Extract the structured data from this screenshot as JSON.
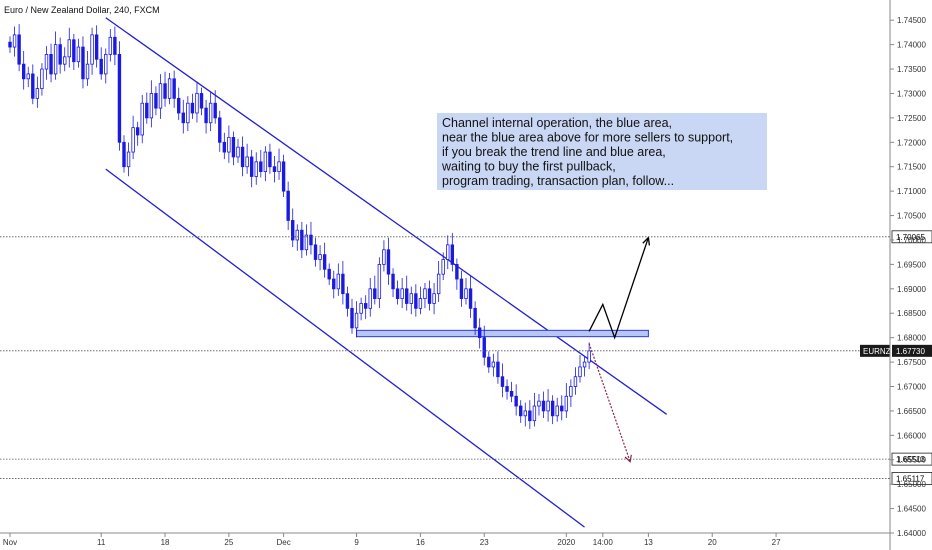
{
  "chart_data": {
    "type": "candlestick",
    "title": "Euro / New Zealand Dollar, 240, FXCM",
    "y_axis": {
      "position": "right",
      "ylim": [
        1.64,
        1.7475
      ],
      "ticks": [
        "1.74500",
        "1.74000",
        "1.73500",
        "1.73000",
        "1.72500",
        "1.72000",
        "1.71500",
        "1.71000",
        "1.70500",
        "1.70000",
        "1.69500",
        "1.69000",
        "1.68500",
        "1.68000",
        "1.67500",
        "1.67000",
        "1.66500",
        "1.66000",
        "1.65500",
        "1.65000",
        "1.64500",
        "1.64000"
      ],
      "tick_values": [
        1.745,
        1.74,
        1.735,
        1.73,
        1.725,
        1.72,
        1.715,
        1.71,
        1.705,
        1.7,
        1.695,
        1.69,
        1.685,
        1.68,
        1.675,
        1.67,
        1.665,
        1.66,
        1.655,
        1.65,
        1.645,
        1.64
      ]
    },
    "x_axis": {
      "ticks": [
        {
          "label": "Nov",
          "day": 0
        },
        {
          "label": "11",
          "day": 10
        },
        {
          "label": "18",
          "day": 17
        },
        {
          "label": "25",
          "day": 24
        },
        {
          "label": "Dec",
          "day": 30
        },
        {
          "label": "9",
          "day": 38
        },
        {
          "label": "16",
          "day": 45
        },
        {
          "label": "23",
          "day": 52
        },
        {
          "label": "2020",
          "day": 61
        },
        {
          "label": "14:00",
          "day": 65
        },
        {
          "label": "13",
          "day": 70
        },
        {
          "label": "20",
          "day": 77
        },
        {
          "label": "27",
          "day": 84
        }
      ]
    },
    "series": [
      {
        "points_day_close": [
          [
            0,
            1.7395
          ],
          [
            0.5,
            1.742
          ],
          [
            1,
            1.736
          ],
          [
            1.5,
            1.733
          ],
          [
            2,
            1.734
          ],
          [
            2.5,
            1.729
          ],
          [
            3,
            1.731
          ],
          [
            3.5,
            1.735
          ],
          [
            4,
            1.738
          ],
          [
            4.5,
            1.734
          ],
          [
            5,
            1.74
          ],
          [
            5.5,
            1.736
          ],
          [
            6,
            1.7375
          ],
          [
            6.5,
            1.741
          ],
          [
            7,
            1.7365
          ],
          [
            7.5,
            1.7395
          ],
          [
            8,
            1.733
          ],
          [
            8.5,
            1.736
          ],
          [
            9,
            1.742
          ],
          [
            9.5,
            1.737
          ],
          [
            10,
            1.734
          ],
          [
            10.5,
            1.738
          ],
          [
            11,
            1.7415
          ],
          [
            11.5,
            1.738
          ],
          [
            12,
            1.72
          ],
          [
            12.5,
            1.715
          ],
          [
            13,
            1.718
          ],
          [
            13.5,
            1.723
          ],
          [
            14,
            1.7215
          ],
          [
            14.5,
            1.728
          ],
          [
            15,
            1.725
          ],
          [
            15.5,
            1.73
          ],
          [
            16,
            1.727
          ],
          [
            16.5,
            1.732
          ],
          [
            17,
            1.729
          ],
          [
            17.5,
            1.733
          ],
          [
            18,
            1.729
          ],
          [
            18.5,
            1.726
          ],
          [
            19,
            1.724
          ],
          [
            19.5,
            1.728
          ],
          [
            20,
            1.726
          ],
          [
            20.5,
            1.73
          ],
          [
            21,
            1.727
          ],
          [
            21.5,
            1.724
          ],
          [
            22,
            1.728
          ],
          [
            22.5,
            1.725
          ],
          [
            23,
            1.72
          ],
          [
            23.5,
            1.718
          ],
          [
            24,
            1.721
          ],
          [
            24.5,
            1.717
          ],
          [
            25,
            1.719
          ],
          [
            25.5,
            1.715
          ],
          [
            26,
            1.717
          ],
          [
            26.5,
            1.713
          ],
          [
            27,
            1.716
          ],
          [
            27.5,
            1.714
          ],
          [
            28,
            1.718
          ],
          [
            28.5,
            1.715
          ],
          [
            29,
            1.714
          ],
          [
            29.5,
            1.716
          ],
          [
            30,
            1.71
          ],
          [
            30.5,
            1.704
          ],
          [
            31,
            1.7
          ],
          [
            31.5,
            1.702
          ],
          [
            32,
            1.698
          ],
          [
            32.5,
            1.701
          ],
          [
            33,
            1.699
          ],
          [
            33.5,
            1.696
          ],
          [
            34,
            1.697
          ],
          [
            34.5,
            1.694
          ],
          [
            35,
            1.692
          ],
          [
            35.5,
            1.69
          ],
          [
            36,
            1.693
          ],
          [
            36.5,
            1.689
          ],
          [
            37,
            1.686
          ],
          [
            37.5,
            1.682
          ],
          [
            38,
            1.685
          ],
          [
            38.5,
            1.687
          ],
          [
            39,
            1.686
          ],
          [
            39.5,
            1.69
          ],
          [
            40,
            1.688
          ],
          [
            40.5,
            1.695
          ],
          [
            41,
            1.698
          ],
          [
            41.5,
            1.693
          ],
          [
            42,
            1.69
          ],
          [
            42.5,
            1.688
          ],
          [
            43,
            1.69
          ],
          [
            43.5,
            1.687
          ],
          [
            44,
            1.689
          ],
          [
            44.5,
            1.686
          ],
          [
            45,
            1.688
          ],
          [
            45.5,
            1.69
          ],
          [
            46,
            1.687
          ],
          [
            46.5,
            1.689
          ],
          [
            47,
            1.693
          ],
          [
            47.5,
            1.696
          ],
          [
            48,
            1.699
          ],
          [
            48.5,
            1.695
          ],
          [
            49,
            1.692
          ],
          [
            49.5,
            1.688
          ],
          [
            50,
            1.69
          ],
          [
            50.5,
            1.686
          ],
          [
            51,
            1.682
          ],
          [
            51.5,
            1.68
          ],
          [
            52,
            1.676
          ],
          [
            52.5,
            1.674
          ],
          [
            53,
            1.675
          ],
          [
            53.5,
            1.672
          ],
          [
            54,
            1.67
          ],
          [
            54.5,
            1.669
          ],
          [
            55,
            1.668
          ],
          [
            55.5,
            1.666
          ],
          [
            56,
            1.664
          ],
          [
            56.5,
            1.665
          ],
          [
            57,
            1.663
          ],
          [
            57.5,
            1.666
          ],
          [
            58,
            1.667
          ],
          [
            58.5,
            1.665
          ],
          [
            59,
            1.667
          ],
          [
            59.5,
            1.664
          ],
          [
            60,
            1.666
          ],
          [
            60.5,
            1.665
          ],
          [
            61,
            1.668
          ],
          [
            61.5,
            1.67
          ],
          [
            62,
            1.672
          ],
          [
            62.5,
            1.674
          ],
          [
            63,
            1.675
          ],
          [
            63.5,
            1.6773
          ]
        ]
      }
    ],
    "annotations": {
      "note_lines": [
        "Channel internal operation, the blue area,",
        "near the blue area above for more sellers to support,",
        " if you break the trend line and blue area,",
        "waiting to buy the first pullback,",
        "program trading, transaction plan, follow..."
      ],
      "horizontal_levels": [
        {
          "label": "1.70065",
          "value": 1.70065
        },
        {
          "label": "1.65513",
          "value": 1.65513
        },
        {
          "label": "1.65117",
          "value": 1.65117
        }
      ],
      "current_price": {
        "symbol": "EURNZD",
        "label": "1.67730",
        "value": 1.6773
      },
      "channel_upper": [
        [
          10.5,
          1.7455
        ],
        [
          72,
          1.6643
        ]
      ],
      "channel_lower": [
        [
          10.5,
          1.7145
        ],
        [
          63,
          1.6412
        ]
      ],
      "zone": {
        "day_start": 38,
        "day_end": 70,
        "y_low": 1.6802,
        "y_high": 1.6815
      },
      "bullish_path": [
        [
          63.5,
          1.6813
        ],
        [
          65,
          1.6868
        ],
        [
          66.3,
          1.68
        ],
        [
          70,
          1.7005
        ]
      ],
      "bearish_path": [
        [
          63.5,
          1.6788
        ],
        [
          68,
          1.6546
        ]
      ]
    },
    "colors": {
      "candle": "#1b1be0",
      "channel": "#1f1fd6",
      "zone_fill": "#b8c6f3",
      "zone_stroke": "#2d3bd8",
      "note_bg": "#c9d7f4",
      "bull_path": "#000000",
      "bear_path": "#8a1f52",
      "level_line": "#555555",
      "axis_text": "#333333"
    }
  }
}
